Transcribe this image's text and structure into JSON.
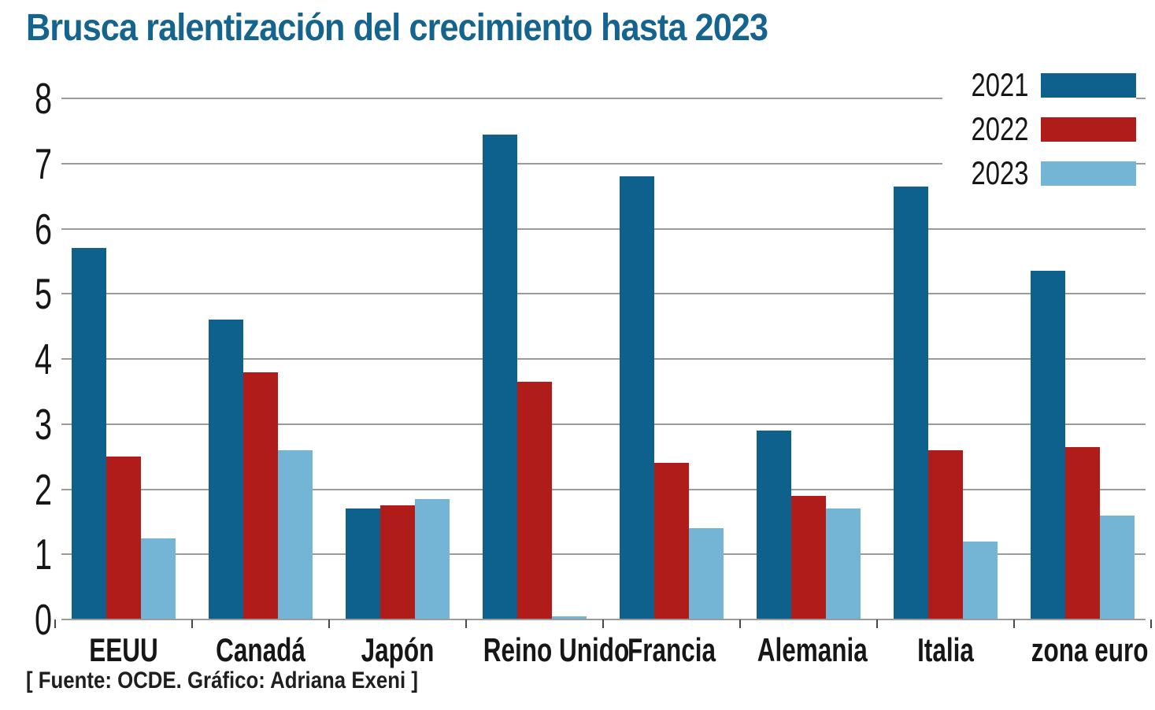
{
  "source_caption": "[ Fuente: OCDE.  Gráfico: Adriana Exeni ]",
  "colors": {
    "title_accent": "#15648e",
    "gridline": "#9b9b9b",
    "axis_text": "#161616",
    "series_2021": "#0e618c",
    "series_2022": "#b01c19",
    "series_2023": "#74b5d6"
  },
  "chart_data": {
    "type": "bar",
    "title": "Brusca ralentización del crecimiento hasta 2023",
    "categories": [
      "EEUU",
      "Canadá",
      "Japón",
      "Reino Unido",
      "Francia",
      "Alemania",
      "Italia",
      "zona euro"
    ],
    "series": [
      {
        "name": "2021",
        "color_key": "series_2021",
        "values": [
          5.7,
          4.6,
          1.7,
          7.45,
          6.8,
          2.9,
          6.65,
          5.35
        ]
      },
      {
        "name": "2022",
        "color_key": "series_2022",
        "values": [
          2.5,
          3.8,
          1.75,
          3.65,
          2.4,
          1.9,
          2.6,
          2.65
        ]
      },
      {
        "name": "2023",
        "color_key": "series_2023",
        "values": [
          1.25,
          2.6,
          1.85,
          0.05,
          1.4,
          1.7,
          1.2,
          1.6
        ]
      }
    ],
    "xlabel": "",
    "ylabel": "",
    "ylim": [
      0,
      8
    ],
    "yticks": [
      0,
      1,
      2,
      3,
      4,
      5,
      6,
      7,
      8
    ],
    "grid": true,
    "legend_position": "top-right"
  }
}
